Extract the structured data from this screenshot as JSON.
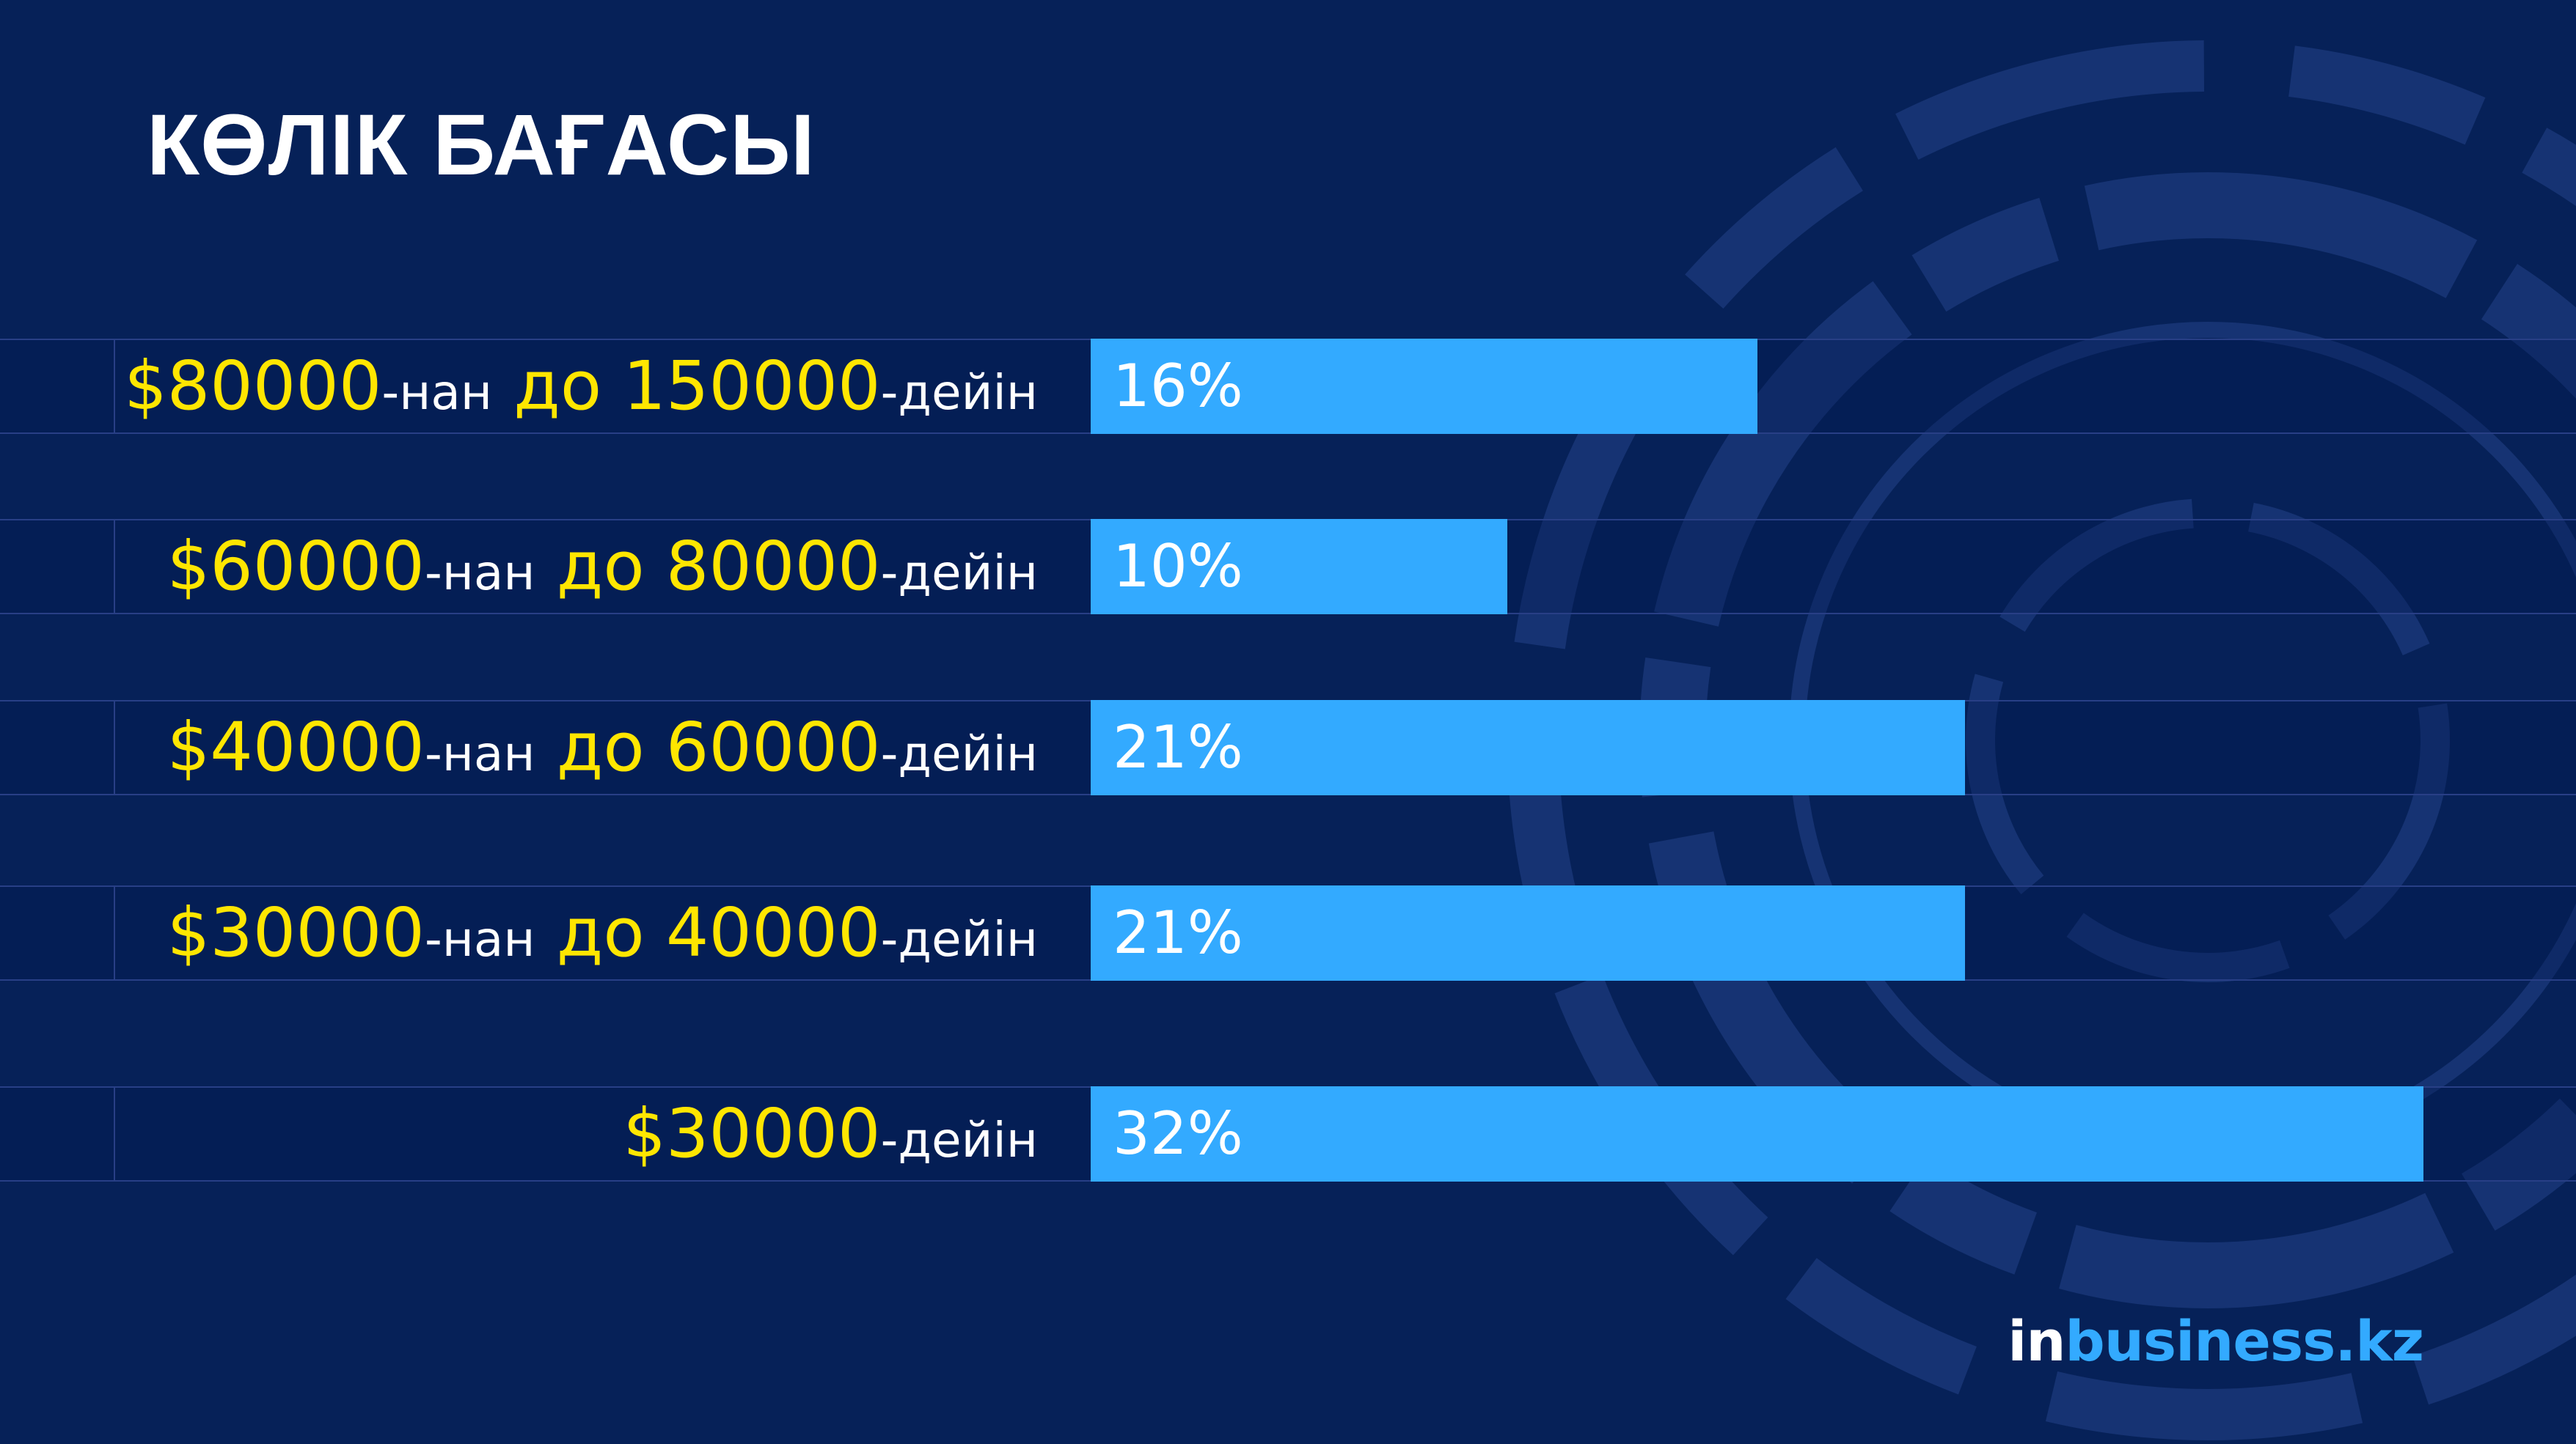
{
  "title": "КӨЛІК БАҒАСЫ",
  "colors": {
    "background": "#062158",
    "bar": "#33aaff",
    "price_text": "#ffe600",
    "suffix_text": "#ffffff"
  },
  "rows": [
    {
      "from": "$80000",
      "from_suffix": "-нан",
      "to_prefix": " до ",
      "to": "150000",
      "to_suffix": "-дейін",
      "value_label": "16%"
    },
    {
      "from": "$60000",
      "from_suffix": "-нан",
      "to_prefix": " до ",
      "to": "80000",
      "to_suffix": "-дейін",
      "value_label": "10%"
    },
    {
      "from": "$40000",
      "from_suffix": "-нан",
      "to_prefix": " до ",
      "to": "60000",
      "to_suffix": "-дейін",
      "value_label": "21%"
    },
    {
      "from": "$30000",
      "from_suffix": "-нан",
      "to_prefix": " до ",
      "to": "40000",
      "to_suffix": "-дейін",
      "value_label": "21%"
    },
    {
      "from": "$30000",
      "from_suffix": "-дейін",
      "to_prefix": "",
      "to": "",
      "to_suffix": "",
      "value_label": "32%"
    }
  ],
  "chart_data": {
    "type": "bar",
    "orientation": "horizontal",
    "title": "КӨЛІК БАҒАСЫ",
    "categories": [
      "$80000-нан до 150000-дейін",
      "$60000-нан до 80000-дейін",
      "$40000-нан до 60000-дейін",
      "$30000-нан до 40000-дейін",
      "$30000-дейін"
    ],
    "values": [
      16,
      10,
      21,
      21,
      32
    ],
    "unit": "%",
    "xlim": [
      0,
      32
    ],
    "grid": false,
    "legend": "none"
  },
  "logo": {
    "part1": "in",
    "part2": "business.kz"
  }
}
